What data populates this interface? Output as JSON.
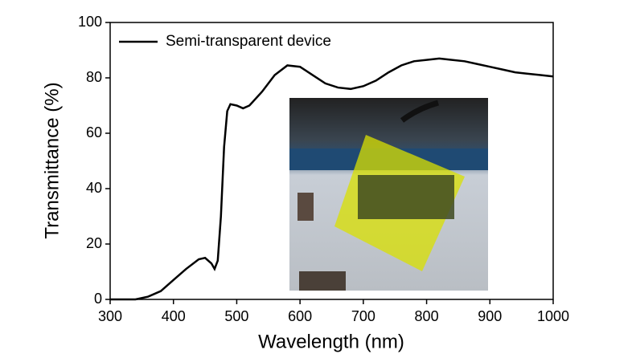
{
  "chart_data": {
    "type": "line",
    "x_label": "Wavelength (nm)",
    "y_label": "Transmittance (%)",
    "x": [
      300,
      340,
      360,
      380,
      400,
      420,
      440,
      450,
      460,
      465,
      470,
      475,
      480,
      485,
      490,
      500,
      510,
      520,
      540,
      560,
      580,
      600,
      620,
      640,
      660,
      680,
      700,
      720,
      740,
      760,
      780,
      800,
      820,
      840,
      860,
      880,
      900,
      920,
      940,
      960,
      980,
      1000
    ],
    "series": [
      {
        "name": "Semi-transparent device",
        "color": "#000000",
        "values": [
          0,
          0,
          1,
          3,
          7,
          11,
          14.5,
          15,
          13,
          11,
          14,
          30,
          55,
          68,
          70.5,
          70,
          69,
          70,
          75,
          81,
          84.5,
          84,
          81,
          78,
          76.5,
          76,
          77,
          79,
          82,
          84.5,
          86,
          86.5,
          87,
          86.5,
          86,
          85,
          84,
          83,
          82,
          81.5,
          81,
          80.5
        ]
      }
    ],
    "xlim": [
      300,
      1000
    ],
    "ylim": [
      0,
      100
    ],
    "xticks": [
      300,
      400,
      500,
      600,
      700,
      800,
      900,
      1000
    ],
    "yticks": [
      0,
      20,
      40,
      60,
      80,
      100
    ],
    "legend": "upper left"
  }
}
